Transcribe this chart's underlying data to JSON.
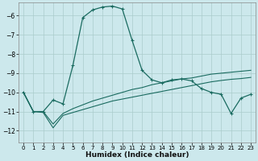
{
  "xlabel": "Humidex (Indice chaleur)",
  "bg_color": "#cce8ec",
  "grid_color": "#aacccc",
  "line_color": "#1a6b60",
  "xlim": [
    -0.5,
    23.5
  ],
  "ylim": [
    -12.6,
    -5.3
  ],
  "yticks": [
    -12,
    -11,
    -10,
    -9,
    -8,
    -7,
    -6
  ],
  "xticks": [
    0,
    1,
    2,
    3,
    4,
    5,
    6,
    7,
    8,
    9,
    10,
    11,
    12,
    13,
    14,
    15,
    16,
    17,
    18,
    19,
    20,
    21,
    22,
    23
  ],
  "curve1_x": [
    0,
    1,
    2,
    3,
    4,
    5,
    6,
    7,
    8,
    9,
    10,
    11,
    12,
    13,
    14,
    15,
    16,
    17,
    18,
    19,
    20,
    21,
    22,
    23
  ],
  "curve1_y": [
    -10.0,
    -11.0,
    -11.0,
    -10.4,
    -10.6,
    -8.6,
    -6.1,
    -5.7,
    -5.55,
    -5.5,
    -5.65,
    -7.3,
    -8.85,
    -9.35,
    -9.5,
    -9.35,
    -9.3,
    -9.4,
    -9.8,
    -10.0,
    -10.1,
    -11.1,
    -10.3,
    -10.1
  ],
  "curve2_x": [
    0,
    1,
    2,
    3,
    4,
    5,
    6,
    7,
    8,
    9,
    10,
    11,
    12,
    13,
    14,
    15,
    16,
    17,
    18,
    19,
    20,
    21,
    22,
    23
  ],
  "curve2_y": [
    -10.0,
    -11.0,
    -11.0,
    -11.65,
    -11.1,
    -10.85,
    -10.65,
    -10.45,
    -10.3,
    -10.15,
    -10.0,
    -9.85,
    -9.75,
    -9.6,
    -9.5,
    -9.4,
    -9.3,
    -9.25,
    -9.15,
    -9.05,
    -9.0,
    -8.95,
    -8.9,
    -8.85
  ],
  "curve3_x": [
    0,
    1,
    2,
    3,
    4,
    5,
    6,
    7,
    8,
    9,
    10,
    11,
    12,
    13,
    14,
    15,
    16,
    17,
    18,
    19,
    20,
    21,
    22,
    23
  ],
  "curve3_y": [
    -10.0,
    -11.0,
    -11.05,
    -11.85,
    -11.2,
    -11.05,
    -10.9,
    -10.75,
    -10.6,
    -10.45,
    -10.35,
    -10.25,
    -10.15,
    -10.05,
    -9.95,
    -9.85,
    -9.75,
    -9.65,
    -9.55,
    -9.45,
    -9.38,
    -9.32,
    -9.28,
    -9.22
  ]
}
